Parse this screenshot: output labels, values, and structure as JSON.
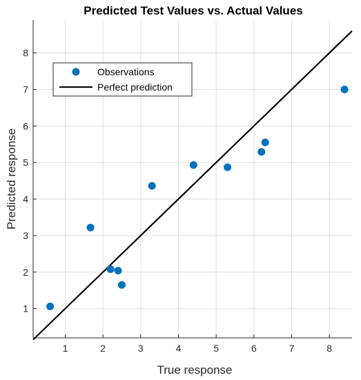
{
  "chart_data": {
    "type": "scatter",
    "title": "Predicted Test Values vs. Actual Values",
    "xlabel": "True response",
    "ylabel": "Predicted response",
    "xlim": [
      0.15,
      8.6
    ],
    "ylim": [
      0.2,
      8.9
    ],
    "xticks": [
      1,
      2,
      3,
      4,
      5,
      6,
      7,
      8
    ],
    "yticks": [
      1,
      2,
      3,
      4,
      5,
      6,
      7,
      8
    ],
    "grid": true,
    "legend_position": "top-left",
    "series": [
      {
        "name": "Observations",
        "kind": "points",
        "color": "#0072BD",
        "points": [
          {
            "x": 0.6,
            "y": 1.06
          },
          {
            "x": 1.67,
            "y": 3.22
          },
          {
            "x": 2.2,
            "y": 2.08
          },
          {
            "x": 2.4,
            "y": 2.04
          },
          {
            "x": 2.5,
            "y": 1.65
          },
          {
            "x": 3.3,
            "y": 4.36
          },
          {
            "x": 4.4,
            "y": 4.93
          },
          {
            "x": 5.3,
            "y": 4.87
          },
          {
            "x": 6.2,
            "y": 5.29
          },
          {
            "x": 6.3,
            "y": 5.55
          },
          {
            "x": 8.4,
            "y": 7.0
          }
        ]
      },
      {
        "name": "Perfect prediction",
        "kind": "line",
        "color": "#000000",
        "points": [
          {
            "x": 0.15,
            "y": 0.15
          },
          {
            "x": 8.6,
            "y": 8.6
          }
        ]
      }
    ]
  }
}
